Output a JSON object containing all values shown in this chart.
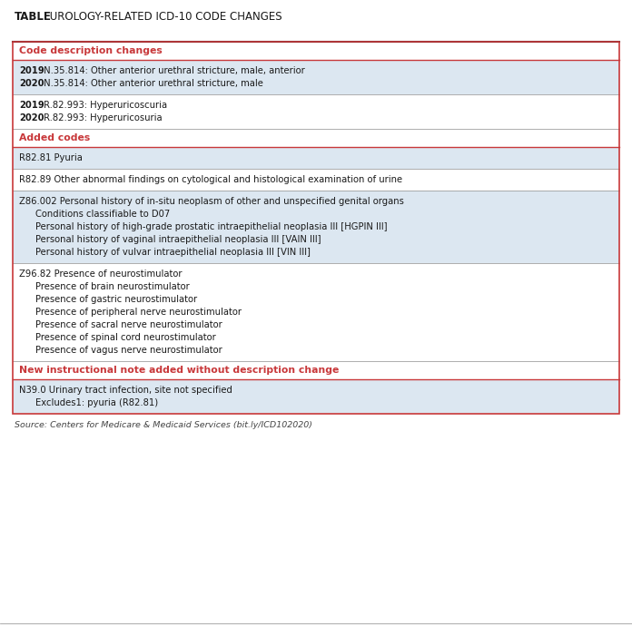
{
  "title_bold": "TABLE",
  "title_rest": " UROLOGY-RELATED ICD-10 CODE CHANGES",
  "bg_color": "#ffffff",
  "border_color": "#c8383a",
  "section_header_color": "#c8383a",
  "text_color": "#1a1a1a",
  "row_bg_blue": "#dce7f1",
  "row_bg_white": "#ffffff",
  "source_text": "Source: Centers for Medicare & Medicaid Services (bit.ly/ICD102020)",
  "sections": [
    {
      "type": "section_header",
      "text": "Code description changes"
    },
    {
      "type": "data_row",
      "bg": "#dce7f1",
      "lines": [
        {
          "bold": "2019",
          "rest": " N.35.814: Other anterior urethral stricture, male, anterior"
        },
        {
          "bold": "2020",
          "rest": " N.35.814: Other anterior urethral stricture, male"
        }
      ]
    },
    {
      "type": "data_row",
      "bg": "#ffffff",
      "lines": [
        {
          "bold": "2019",
          "rest": " R.82.993: Hyperuricoscuria"
        },
        {
          "bold": "2020",
          "rest": " R.82.993: Hyperuricosuria"
        }
      ]
    },
    {
      "type": "section_header",
      "text": "Added codes"
    },
    {
      "type": "data_row",
      "bg": "#dce7f1",
      "lines": [
        {
          "bold": "",
          "rest": "R82.81 Pyuria"
        }
      ]
    },
    {
      "type": "data_row",
      "bg": "#ffffff",
      "lines": [
        {
          "bold": "",
          "rest": "R82.89 Other abnormal findings on cytological and histological examination of urine"
        }
      ]
    },
    {
      "type": "data_row",
      "bg": "#dce7f1",
      "lines": [
        {
          "bold": "",
          "rest": "Z86.002 Personal history of in-situ neoplasm of other and unspecified genital organs",
          "indent": 0
        },
        {
          "bold": "",
          "rest": "Conditions classifiable to D07",
          "indent": 1
        },
        {
          "bold": "",
          "rest": "Personal history of high-grade prostatic intraepithelial neoplasia III [HGPIN III]",
          "indent": 1
        },
        {
          "bold": "",
          "rest": "Personal history of vaginal intraepithelial neoplasia III [VAIN III]",
          "indent": 1
        },
        {
          "bold": "",
          "rest": "Personal history of vulvar intraepithelial neoplasia III [VIN III]",
          "indent": 1
        }
      ]
    },
    {
      "type": "data_row",
      "bg": "#ffffff",
      "lines": [
        {
          "bold": "",
          "rest": "Z96.82 Presence of neurostimulator",
          "indent": 0
        },
        {
          "bold": "",
          "rest": "Presence of brain neurostimulator",
          "indent": 1
        },
        {
          "bold": "",
          "rest": "Presence of gastric neurostimulator",
          "indent": 1
        },
        {
          "bold": "",
          "rest": "Presence of peripheral nerve neurostimulator",
          "indent": 1
        },
        {
          "bold": "",
          "rest": "Presence of sacral nerve neurostimulator",
          "indent": 1
        },
        {
          "bold": "",
          "rest": "Presence of spinal cord neurostimulator",
          "indent": 1
        },
        {
          "bold": "",
          "rest": "Presence of vagus nerve neurostimulator",
          "indent": 1
        }
      ]
    },
    {
      "type": "section_header",
      "text": "New instructional note added without description change"
    },
    {
      "type": "data_row",
      "bg": "#dce7f1",
      "lines": [
        {
          "bold": "",
          "rest": "N39.0 Urinary tract infection, site not specified",
          "indent": 0
        },
        {
          "bold": "",
          "rest": "Excludes1: pyuria (R82.81)",
          "indent": 1
        }
      ]
    }
  ],
  "fig_w": 6.96,
  "fig_h": 6.91,
  "dpi": 100
}
